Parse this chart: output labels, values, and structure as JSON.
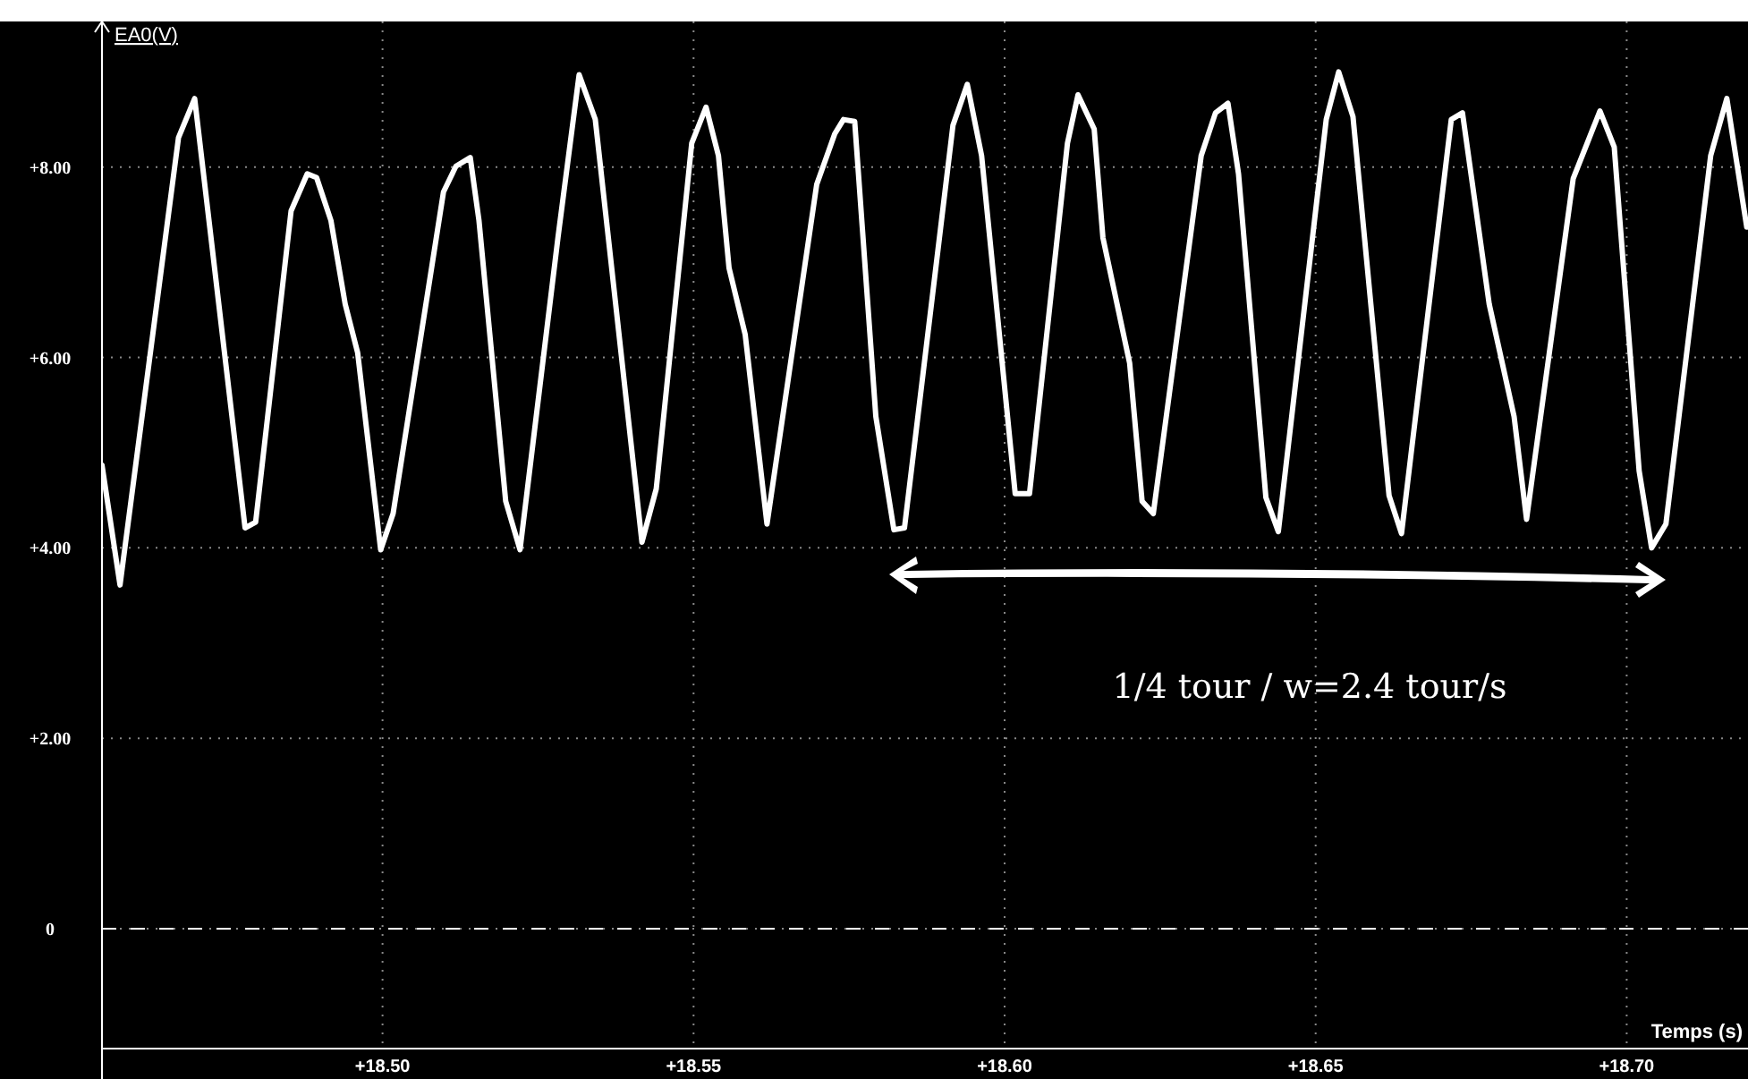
{
  "chart_data": {
    "type": "line",
    "xlabel": "Temps (s)",
    "ylabel": "EA0(V)",
    "x": [
      18.4549,
      18.4578,
      18.4672,
      18.4698,
      18.4779,
      18.4796,
      18.4853,
      18.4879,
      18.4894,
      18.4917,
      18.494,
      18.496,
      18.4997,
      18.5017,
      18.5098,
      18.5118,
      18.5141,
      18.5155,
      18.5198,
      18.5221,
      18.5282,
      18.5316,
      18.5342,
      18.5417,
      18.544,
      18.5497,
      18.552,
      18.554,
      18.5557,
      18.5583,
      18.5618,
      18.5698,
      18.5727,
      18.5741,
      18.5759,
      18.5793,
      18.5822,
      18.5839,
      18.5917,
      18.594,
      18.5963,
      18.6017,
      18.604,
      18.6101,
      18.6118,
      18.6144,
      18.6158,
      18.6201,
      18.6221,
      18.6239,
      18.6316,
      18.6339,
      18.6359,
      18.6376,
      18.642,
      18.644,
      18.6517,
      18.6537,
      18.656,
      18.6618,
      18.6638,
      18.6718,
      18.6736,
      18.6779,
      18.6819,
      18.6839,
      18.6914,
      18.6957,
      18.698,
      18.702,
      18.704,
      18.7063,
      18.7135,
      18.7161,
      18.7193
    ],
    "series": [
      {
        "color": "#ffffff",
        "values": [
          4.87,
          3.61,
          8.31,
          8.72,
          4.21,
          4.27,
          7.54,
          7.93,
          7.89,
          7.44,
          6.56,
          6.05,
          3.98,
          4.36,
          7.74,
          8.01,
          8.1,
          7.44,
          4.49,
          3.98,
          7.26,
          8.97,
          8.5,
          4.06,
          4.62,
          8.25,
          8.63,
          8.12,
          6.94,
          6.24,
          4.25,
          7.82,
          8.35,
          8.5,
          8.48,
          5.38,
          4.19,
          4.21,
          8.44,
          8.87,
          8.12,
          4.57,
          4.57,
          8.25,
          8.76,
          8.4,
          7.26,
          5.94,
          4.49,
          4.36,
          8.12,
          8.57,
          8.67,
          7.93,
          4.53,
          4.17,
          8.5,
          9.0,
          8.53,
          4.55,
          4.15,
          8.5,
          8.57,
          6.56,
          5.38,
          4.3,
          7.88,
          8.59,
          8.21,
          4.81,
          4.0,
          4.25,
          8.12,
          8.72,
          7.37
        ]
      }
    ],
    "xlim": [
      18.4549,
      18.7195
    ],
    "ylim": [
      -1.26,
      9.53
    ],
    "xticks": [
      {
        "value": 18.5,
        "label": "+18.50"
      },
      {
        "value": 18.55,
        "label": "+18.55"
      },
      {
        "value": 18.6,
        "label": "+18.60"
      },
      {
        "value": 18.65,
        "label": "+18.65"
      },
      {
        "value": 18.7,
        "label": "+18.70"
      }
    ],
    "yticks": [
      0,
      {
        "value": 2,
        "label": "+2.00"
      },
      {
        "value": 4,
        "label": "+4.00"
      },
      {
        "value": 6,
        "label": "+6.00"
      },
      {
        "value": 8,
        "label": "+8.00"
      }
    ],
    "grid": true,
    "line_style": "solid",
    "marker": "none",
    "ref_lines": [
      {
        "axis": "y",
        "value": 0,
        "color": "#ffffff",
        "line_style": "dashed"
      }
    ],
    "annotations": [
      "1/4 tour / w=2.4 tour/s"
    ]
  }
}
